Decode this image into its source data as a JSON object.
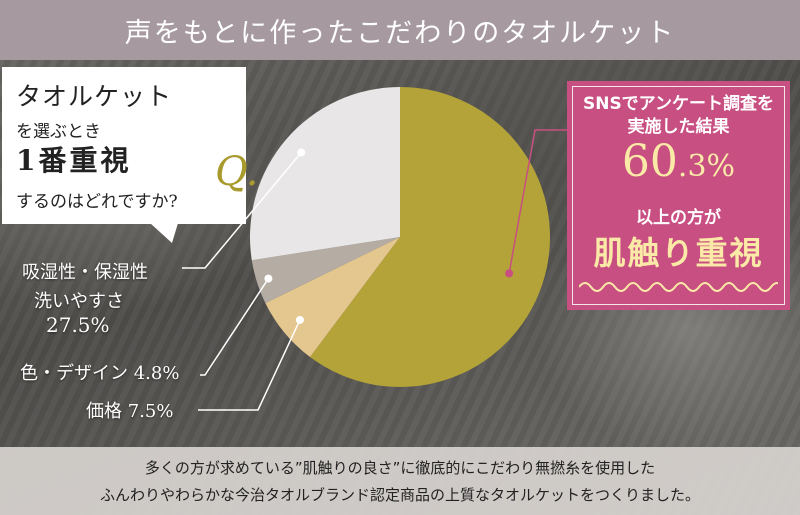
{
  "header": {
    "title": "声をもとに作ったこだわりのタオルケット"
  },
  "question": {
    "line1": "タオルケット",
    "line2": "を選ぶとき",
    "line3": "1番重視",
    "line4": "するのはどれですか?",
    "mark": "Q."
  },
  "chart_data": {
    "type": "pie",
    "title": "",
    "slices": [
      {
        "label": "肌触り重視",
        "value": 60.3,
        "color": "#b3a339"
      },
      {
        "label": "価格",
        "value_text": "7.5%",
        "value": 7.5,
        "color": "#e4c78f"
      },
      {
        "label": "色・デザイン",
        "value_text": "4.8%",
        "value": 4.8,
        "color": "#b5ada3"
      },
      {
        "label_lines": [
          "吸湿性・保湿性",
          "洗いやすさ"
        ],
        "value_text": "27.5%",
        "value": 27.5,
        "color": "#e8e6e6"
      }
    ],
    "legend": "none"
  },
  "result": {
    "line1": "SNSでアンケート調査を",
    "line2": "実施した結果",
    "pct_big": "60",
    "pct_small": ".3%",
    "line4": "以上の方が",
    "line5": "肌触り重視"
  },
  "footer": {
    "line1": "多くの方が求めている”肌触りの良さ”に徹底的にこだわり無撚糸を使用した",
    "line2": "ふんわりやわらかな今治タオルブランド認定商品の上質なタオルケットをつくりました。"
  },
  "colors": {
    "header_bg": "#a69aa0",
    "accent_pink": "#c84f82",
    "accent_yellow": "#fbe9a7",
    "olive": "#b3a339"
  }
}
